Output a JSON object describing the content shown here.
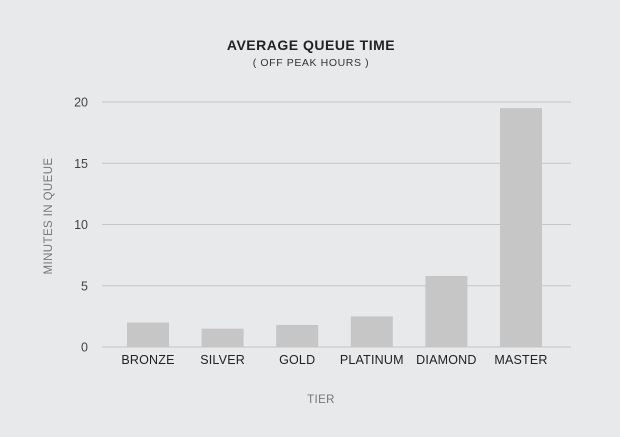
{
  "chart_data": {
    "type": "bar",
    "title": "AVERAGE QUEUE TIME",
    "subtitle": "( OFF PEAK HOURS )",
    "xlabel": "TIER",
    "ylabel": "MINUTES IN QUEUE",
    "categories": [
      "BRONZE",
      "SILVER",
      "GOLD",
      "PLATINUM",
      "DIAMOND",
      "MASTER"
    ],
    "values": [
      2.0,
      1.5,
      1.8,
      2.5,
      5.8,
      19.5
    ],
    "ylim": [
      0,
      20
    ],
    "yticks": [
      "0",
      "5",
      "10",
      "15",
      "20"
    ],
    "ytick_values": [
      0,
      5,
      10,
      15,
      20
    ],
    "grid": true,
    "legend": "none",
    "colors": {
      "background": "#e8e9eb",
      "bar": "#c6c6c6",
      "grid": "#c4c5c7"
    }
  }
}
